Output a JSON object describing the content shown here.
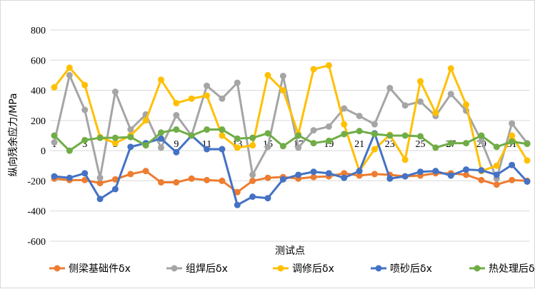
{
  "chart_data": {
    "type": "line",
    "xlabel": "测试点",
    "ylabel": "纵向残余应力/MPa",
    "ylim": [
      -600,
      800
    ],
    "yticks": [
      -600,
      -400,
      -200,
      0,
      200,
      400,
      600,
      800
    ],
    "x": [
      1,
      2,
      3,
      4,
      5,
      6,
      7,
      8,
      9,
      10,
      11,
      12,
      13,
      14,
      15,
      16,
      17,
      18,
      19,
      20,
      21,
      22,
      23,
      24,
      25,
      26,
      27,
      28,
      29,
      30,
      31,
      32
    ],
    "x_tick_labels": [
      "1",
      "3",
      "5",
      "7",
      "9",
      "11",
      "13",
      "15",
      "17",
      "19",
      "21",
      "23",
      "25",
      "27",
      "29",
      "31"
    ],
    "grid": "horizontal",
    "legend_position": "bottom",
    "series": [
      {
        "name": "侧梁基础件δx",
        "color": "#ED7D31",
        "values": [
          -185,
          -195,
          -195,
          -215,
          -190,
          -155,
          -135,
          -210,
          -210,
          -185,
          -195,
          -200,
          -275,
          -200,
          -180,
          -175,
          -185,
          -175,
          -170,
          -150,
          -165,
          -155,
          -160,
          -170,
          -165,
          -150,
          -150,
          -160,
          -195,
          -225,
          -195,
          -200
        ]
      },
      {
        "name": "组焊后δx",
        "color": "#A5A5A5",
        "values": [
          55,
          500,
          270,
          -180,
          390,
          140,
          240,
          20,
          235,
          100,
          430,
          345,
          450,
          -160,
          25,
          495,
          20,
          135,
          160,
          280,
          230,
          175,
          415,
          300,
          325,
          230,
          375,
          265,
          65,
          -185,
          180,
          50
        ]
      },
      {
        "name": "调修后δx",
        "color": "#FFC000",
        "values": [
          420,
          550,
          435,
          90,
          50,
          100,
          200,
          470,
          315,
          345,
          365,
          100,
          20,
          35,
          500,
          400,
          110,
          540,
          565,
          175,
          -135,
          10,
          105,
          -60,
          460,
          250,
          545,
          305,
          -135,
          -100,
          100,
          -65
        ]
      },
      {
        "name": "喷砂后δx",
        "color": "#4472C4",
        "values": [
          -170,
          -180,
          -150,
          -320,
          -255,
          25,
          50,
          80,
          -10,
          100,
          10,
          10,
          -360,
          -305,
          -315,
          -190,
          -160,
          -140,
          -150,
          -180,
          -135,
          115,
          -185,
          -170,
          -140,
          -135,
          -165,
          -125,
          -130,
          -160,
          -95,
          -205
        ]
      },
      {
        "name": "热处理后δx",
        "color": "#70AD47",
        "values": [
          100,
          0,
          70,
          85,
          85,
          90,
          35,
          120,
          140,
          100,
          140,
          140,
          80,
          85,
          115,
          30,
          100,
          50,
          65,
          110,
          130,
          110,
          100,
          100,
          95,
          20,
          50,
          50,
          100,
          25,
          60,
          45
        ]
      }
    ]
  }
}
